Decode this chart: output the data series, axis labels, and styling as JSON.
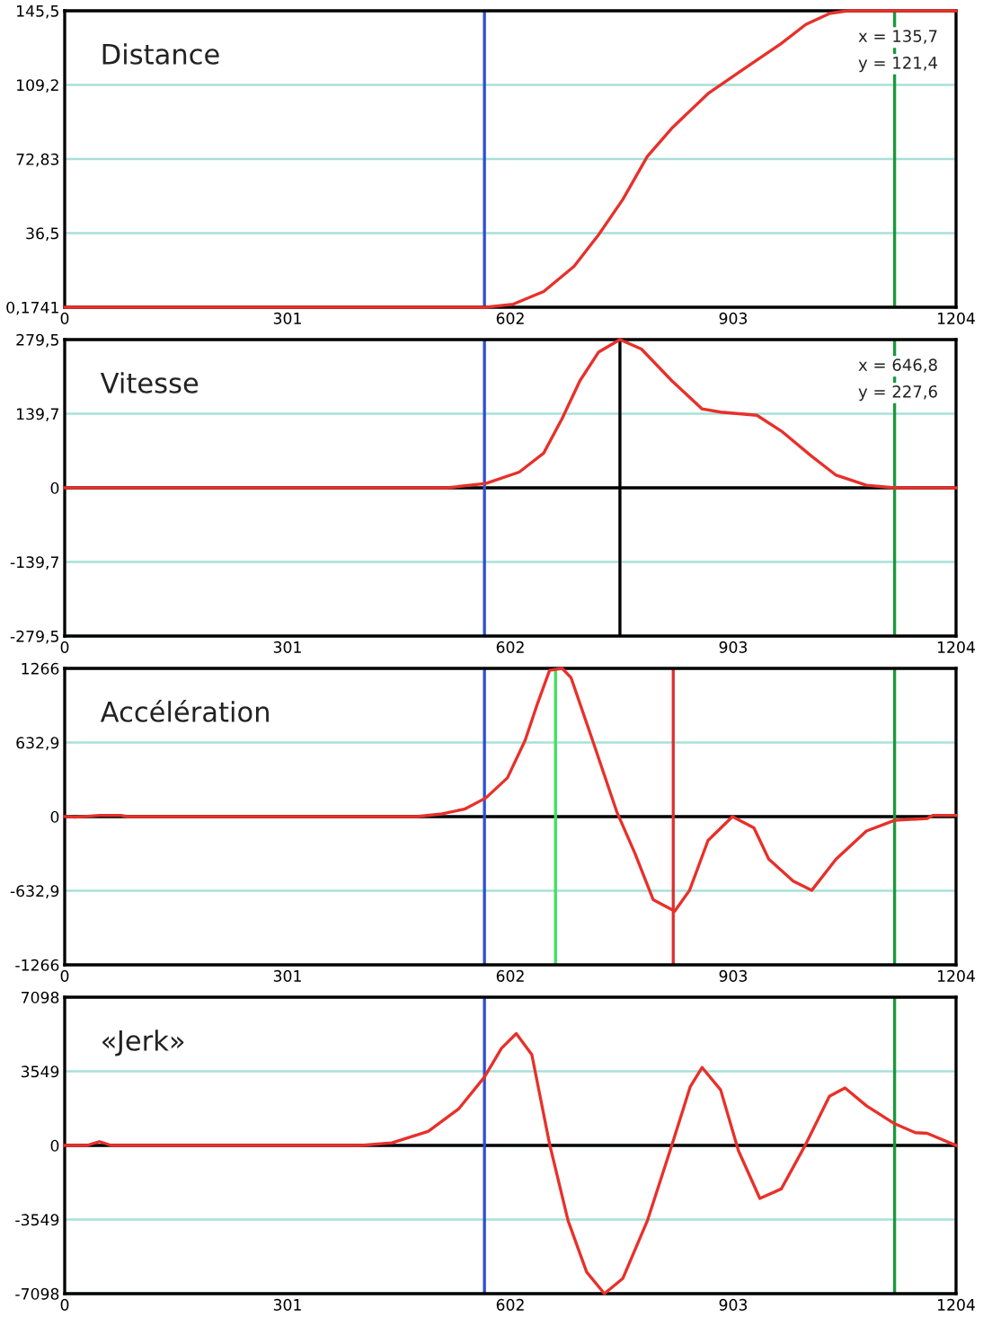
{
  "chart_data": [
    {
      "type": "line",
      "title": "Distance",
      "x": [
        0,
        569,
        606,
        647,
        688,
        721,
        754,
        787,
        820,
        869,
        918,
        968,
        1001,
        1034,
        1058,
        1204
      ],
      "series": [
        {
          "color": "#e8302a",
          "values": [
            0.1741,
            0.1741,
            1.7,
            7.9,
            20.2,
            35.6,
            53.1,
            74.1,
            87.9,
            104.9,
            117.2,
            129.5,
            138.8,
            144.3,
            145.5,
            145.5
          ]
        }
      ],
      "xlim": [
        0,
        1204
      ],
      "xticks": [
        0,
        301,
        602,
        903,
        1204
      ],
      "ylim": [
        0.1741,
        145.5
      ],
      "yticks": [
        {
          "value": 0.1741,
          "label": "0,1741"
        },
        {
          "value": 36.5,
          "label": "36,5"
        },
        {
          "value": 72.83,
          "label": "72,83"
        },
        {
          "value": 109.2,
          "label": "109,2"
        },
        {
          "value": 145.5,
          "label": "145,5"
        }
      ],
      "grid": "y",
      "line_style": "solid",
      "ref_lines": [
        {
          "axis": "x",
          "value": 567,
          "color": "#3050d0"
        },
        {
          "axis": "x",
          "value": 1121,
          "color": "#1a9a3a"
        }
      ],
      "annotations": [
        "x = 135,7",
        "y = 121,4"
      ]
    },
    {
      "type": "line",
      "title": "Vitesse",
      "x": [
        0,
        516,
        569,
        614,
        647,
        672,
        696,
        721,
        750,
        779,
        820,
        861,
        886,
        935,
        968,
        1009,
        1042,
        1083,
        1121,
        1204
      ],
      "series": [
        {
          "color": "#e8302a",
          "values": [
            0,
            0,
            8.3,
            29.7,
            65.4,
            130.8,
            202,
            255.7,
            279.5,
            261.7,
            202,
            148.7,
            142.7,
            136.8,
            107,
            59.5,
            23.8,
            4.8,
            0,
            0
          ]
        }
      ],
      "xlim": [
        0,
        1204
      ],
      "xticks": [
        0,
        301,
        602,
        903,
        1204
      ],
      "ylim": [
        -279.5,
        279.5
      ],
      "yticks": [
        {
          "value": -279.5,
          "label": "-279,5"
        },
        {
          "value": -139.7,
          "label": "-139,7"
        },
        0,
        {
          "value": 139.7,
          "label": "139,7"
        },
        {
          "value": 279.5,
          "label": "279,5"
        }
      ],
      "grid": "y",
      "line_style": "solid",
      "ref_lines": [
        {
          "axis": "y",
          "value": 0,
          "color": "#000000"
        },
        {
          "axis": "x",
          "value": 567,
          "color": "#3050d0"
        },
        {
          "axis": "x",
          "value": 750,
          "color": "#000000"
        },
        {
          "axis": "x",
          "value": 1121,
          "color": "#1a9a3a"
        }
      ],
      "annotations": [
        "x = 646,8",
        "y = 227,6"
      ]
    },
    {
      "type": "line",
      "title": "Accélération",
      "x": [
        0,
        14,
        47,
        76,
        85,
        475,
        507,
        540,
        569,
        598,
        622,
        639,
        655,
        672,
        684,
        713,
        746,
        770,
        795,
        824,
        844,
        869,
        902,
        931,
        951,
        984,
        1009,
        1042,
        1083,
        1121,
        1165,
        1173,
        1204
      ],
      "series": [
        {
          "color": "#e8302a",
          "values": [
            0,
            -5,
            10,
            10,
            0,
            0,
            21,
            64,
            160,
            331,
            652,
            972,
            1250,
            1266,
            1186,
            652,
            37,
            -310,
            -710,
            -807,
            -630,
            -203,
            0,
            -96,
            -363,
            -550,
            -630,
            -363,
            -123,
            -32,
            -16,
            11,
            11
          ]
        }
      ],
      "xlim": [
        0,
        1204
      ],
      "xticks": [
        0,
        301,
        602,
        903,
        1204
      ],
      "ylim": [
        -1266,
        1266
      ],
      "yticks": [
        -1266,
        {
          "value": -632.9,
          "label": "-632,9"
        },
        0,
        {
          "value": 632.9,
          "label": "632,9"
        },
        1266
      ],
      "grid": "y",
      "line_style": "solid",
      "ref_lines": [
        {
          "axis": "y",
          "value": 0,
          "color": "#000000"
        },
        {
          "axis": "x",
          "value": 567,
          "color": "#3050d0"
        },
        {
          "axis": "x",
          "value": 663,
          "color": "#40e060"
        },
        {
          "axis": "x",
          "value": 822,
          "color": "#e03030"
        },
        {
          "axis": "x",
          "value": 1121,
          "color": "#1a9a3a"
        }
      ]
    },
    {
      "type": "line",
      "title": "«Jerk»",
      "x": [
        0,
        30,
        47,
        63,
        400,
        442,
        491,
        532,
        567,
        590,
        610,
        631,
        655,
        680,
        705,
        729,
        754,
        787,
        820,
        845,
        861,
        886,
        910,
        939,
        968,
        1001,
        1033,
        1054,
        1083,
        1121,
        1149,
        1165,
        1204
      ],
      "series": [
        {
          "color": "#e8302a",
          "values": [
            0,
            0,
            184,
            0,
            0,
            122,
            673,
            1744,
            3274,
            4651,
            5355,
            4345,
            61,
            -3611,
            -6059,
            -7098,
            -6365,
            -3611,
            0,
            2815,
            3733,
            2662,
            -245,
            -2540,
            -2081,
            61,
            2356,
            2754,
            1897,
            1040,
            612,
            581,
            0
          ]
        }
      ],
      "xlim": [
        0,
        1204
      ],
      "xticks": [
        0,
        301,
        602,
        903,
        1204
      ],
      "ylim": [
        -7098,
        7098
      ],
      "yticks": [
        -7098,
        -3549,
        0,
        3549,
        7098
      ],
      "grid": "y",
      "line_style": "solid",
      "ref_lines": [
        {
          "axis": "y",
          "value": 0,
          "color": "#000000"
        },
        {
          "axis": "x",
          "value": 567,
          "color": "#3050d0"
        },
        {
          "axis": "x",
          "value": 1121,
          "color": "#1a9a3a"
        }
      ]
    }
  ]
}
